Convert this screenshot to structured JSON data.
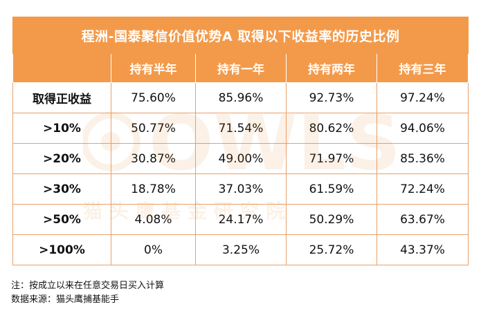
{
  "table": {
    "title": "程洲-国泰聚信价值优势A  取得以下收益率的历史比例",
    "columns": [
      "持有半年",
      "持有一年",
      "持有两年",
      "持有三年"
    ],
    "rows": [
      {
        "label": "取得正收益",
        "values": [
          "75.60%",
          "85.96%",
          "92.73%",
          "97.24%"
        ]
      },
      {
        "label": ">10%",
        "values": [
          "50.77%",
          "71.54%",
          "80.62%",
          "94.06%"
        ]
      },
      {
        "label": ">20%",
        "values": [
          "30.87%",
          "49.00%",
          "71.97%",
          "85.36%"
        ]
      },
      {
        "label": ">30%",
        "values": [
          "18.78%",
          "37.03%",
          "61.59%",
          "72.24%"
        ]
      },
      {
        "label": ">50%",
        "values": [
          "4.08%",
          "24.17%",
          "50.29%",
          "63.67%"
        ]
      },
      {
        "label": ">100%",
        "values": [
          "0%",
          "3.25%",
          "25.72%",
          "43.37%"
        ]
      }
    ]
  },
  "watermark": {
    "brand": "OWLS",
    "subtitle": "猫 头 鹰 基 金 研 究 院",
    "color": "#e8892f"
  },
  "notes": {
    "note": "注：按成立以来在任意交易日买入计算",
    "source": "数据来源：猫头鹰捕基能手"
  },
  "colors": {
    "header": "#f39a4a",
    "border": "#e7a06a"
  }
}
